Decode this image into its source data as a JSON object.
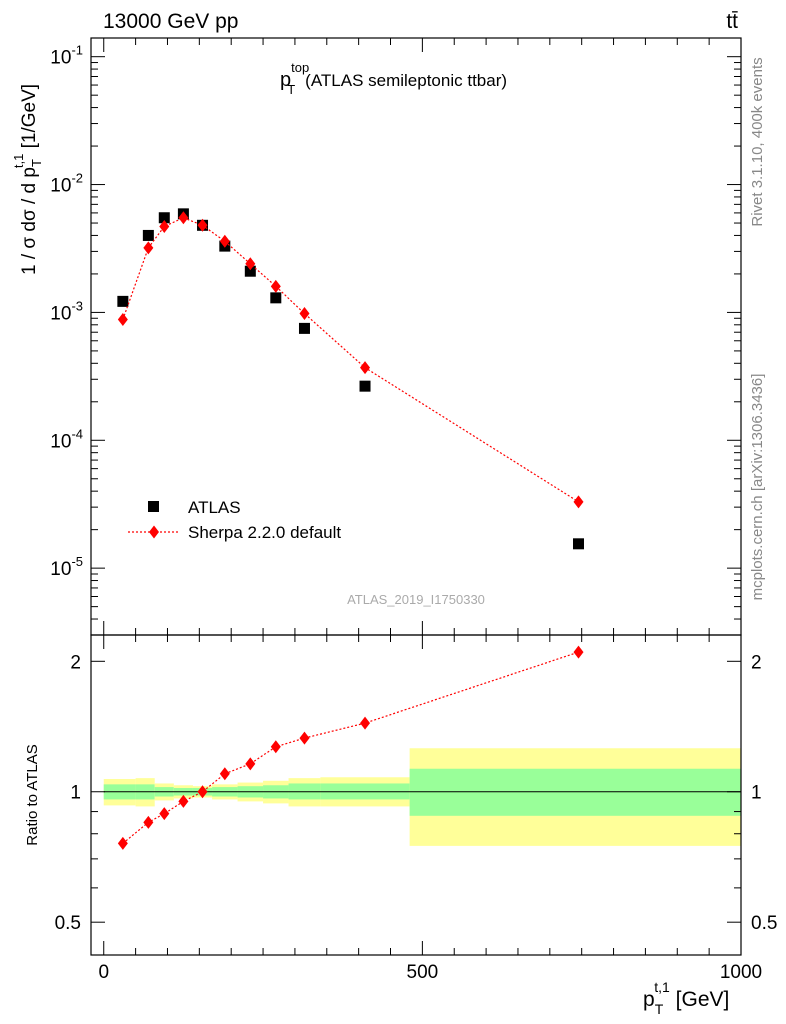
{
  "header": {
    "energy_label": "13000 GeV pp",
    "process_label": "tt̄"
  },
  "side_labels": {
    "rivet": "Rivet 3.1.10,  400k events",
    "source": "mcplots.cern.ch [arXiv:1306.3436]"
  },
  "analysis_id": "ATLAS_2019_I1750330",
  "colors": {
    "data": "#000000",
    "mc": "#ff0000",
    "band_inner": "#99ff99",
    "band_outer": "#ffff99"
  },
  "chart_data": [
    {
      "type": "scatter",
      "panel": "main",
      "title_main": "p",
      "title_sup": "top",
      "title_sub": "T",
      "title_rest": "(ATLAS semileptonic ttbar)",
      "ylabel": "1 / σ dσ / d p_T^{t,1} [1/GeV]",
      "ylabel_parts": {
        "pre": "1 / σ dσ / d p",
        "sub": "T",
        "sup": "t,1",
        "post": " [1/GeV]"
      },
      "yscale": "log",
      "ylim": [
        3e-06,
        0.14
      ],
      "xlim": [
        -20,
        1000
      ],
      "y_ticks": [
        {
          "base": "10",
          "exp": "-1"
        },
        {
          "base": "10",
          "exp": "-2"
        },
        {
          "base": "10",
          "exp": "-3"
        },
        {
          "base": "10",
          "exp": "-4"
        },
        {
          "base": "10",
          "exp": "-5"
        }
      ],
      "legend_position": "lower-left",
      "series": [
        {
          "name": "ATLAS",
          "marker": "square",
          "x": [
            30,
            70,
            95,
            125,
            155,
            190,
            230,
            270,
            315,
            410,
            745
          ],
          "y": [
            0.00122,
            0.004,
            0.0055,
            0.0059,
            0.0048,
            0.0033,
            0.0021,
            0.0013,
            0.00075,
            0.000265,
            1.55e-05
          ]
        },
        {
          "name": "Sherpa 2.2.0 default",
          "marker": "diamond",
          "line": "dotted",
          "x": [
            30,
            70,
            95,
            125,
            155,
            190,
            230,
            270,
            315,
            410,
            745
          ],
          "y": [
            0.00088,
            0.0032,
            0.0047,
            0.0055,
            0.0048,
            0.0036,
            0.0024,
            0.0016,
            0.00098,
            0.00037,
            3.3e-05
          ]
        }
      ]
    },
    {
      "type": "scatter",
      "panel": "ratio",
      "ylabel": "Ratio to ATLAS",
      "xlabel_parts": {
        "pre": "p",
        "sub": "T",
        "sup": "t,1",
        "post": " [GeV]"
      },
      "yscale": "log",
      "ylim": [
        0.42,
        2.3
      ],
      "xlim": [
        -20,
        1000
      ],
      "x_ticks": [
        "0",
        "500",
        "1000"
      ],
      "y_ticks": [
        "2",
        "1",
        "0.5"
      ],
      "bands": [
        {
          "x0": 0,
          "x1": 50,
          "inner": [
            0.96,
            1.04
          ],
          "outer": [
            0.93,
            1.07
          ]
        },
        {
          "x0": 50,
          "x1": 80,
          "inner": [
            0.96,
            1.04
          ],
          "outer": [
            0.925,
            1.075
          ]
        },
        {
          "x0": 80,
          "x1": 110,
          "inner": [
            0.975,
            1.025
          ],
          "outer": [
            0.955,
            1.045
          ]
        },
        {
          "x0": 110,
          "x1": 140,
          "inner": [
            0.98,
            1.02
          ],
          "outer": [
            0.965,
            1.035
          ]
        },
        {
          "x0": 140,
          "x1": 170,
          "inner": [
            0.98,
            1.02
          ],
          "outer": [
            0.97,
            1.03
          ]
        },
        {
          "x0": 170,
          "x1": 210,
          "inner": [
            0.975,
            1.025
          ],
          "outer": [
            0.96,
            1.04
          ]
        },
        {
          "x0": 210,
          "x1": 250,
          "inner": [
            0.97,
            1.03
          ],
          "outer": [
            0.95,
            1.05
          ]
        },
        {
          "x0": 250,
          "x1": 290,
          "inner": [
            0.965,
            1.035
          ],
          "outer": [
            0.94,
            1.06
          ]
        },
        {
          "x0": 290,
          "x1": 340,
          "inner": [
            0.96,
            1.045
          ],
          "outer": [
            0.925,
            1.075
          ]
        },
        {
          "x0": 340,
          "x1": 480,
          "inner": [
            0.96,
            1.045
          ],
          "outer": [
            0.925,
            1.08
          ]
        },
        {
          "x0": 480,
          "x1": 1000,
          "inner": [
            0.88,
            1.13
          ],
          "outer": [
            0.75,
            1.26
          ]
        }
      ],
      "series": [
        {
          "name": "Sherpa 2.2.0 default",
          "marker": "diamond",
          "line": "dotted",
          "x": [
            30,
            70,
            95,
            125,
            155,
            190,
            230,
            270,
            315,
            410,
            745
          ],
          "y": [
            0.76,
            0.85,
            0.89,
            0.95,
            1.0,
            1.1,
            1.16,
            1.27,
            1.33,
            1.44,
            2.1
          ]
        }
      ]
    }
  ]
}
